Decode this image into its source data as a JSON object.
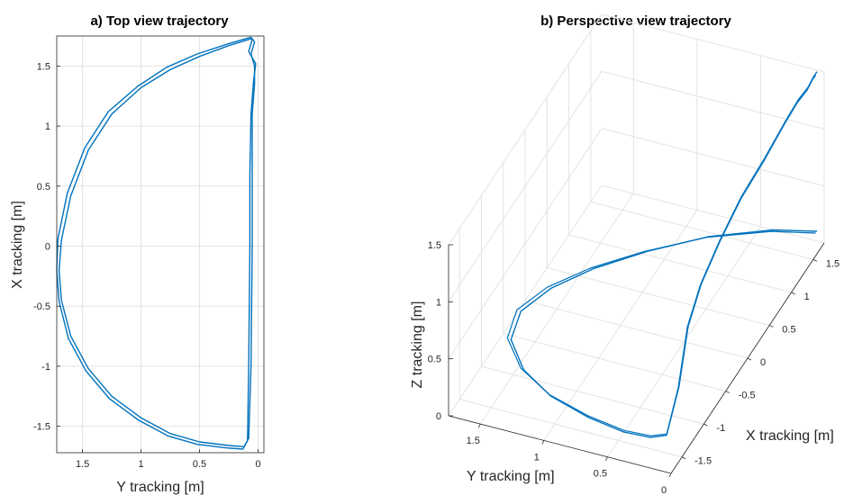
{
  "chart_data": [
    {
      "type": "line",
      "title": "a) Top view trajectory",
      "xlabel": "Y tracking [m]",
      "ylabel": "X tracking [m]",
      "x_ticks": [
        "1.5",
        "1",
        "0.5",
        "0"
      ],
      "y_ticks": [
        "1.5",
        "1",
        "0.5",
        "0",
        "-0.5",
        "-1",
        "-1.5"
      ],
      "xlim": [
        1.72,
        -0.05
      ],
      "ylim": [
        -1.72,
        1.75
      ],
      "x_reversed": true,
      "grid": true,
      "color": "#0072BD",
      "series": [
        {
          "x": [
            0.05,
            0.25,
            0.5,
            0.75,
            1.0,
            1.25,
            1.45,
            1.6,
            1.68,
            1.7,
            1.68,
            1.6,
            1.45,
            1.25,
            1.0,
            0.75,
            0.5,
            0.25,
            0.12,
            0.08,
            0.06,
            0.05,
            0.05,
            0.05,
            0.03,
            0.03,
            0.06,
            0.03,
            0.05
          ],
          "y": [
            1.73,
            1.67,
            1.58,
            1.47,
            1.32,
            1.1,
            0.8,
            0.42,
            0.05,
            -0.2,
            -0.45,
            -0.75,
            -1.02,
            -1.25,
            -1.43,
            -1.56,
            -1.63,
            -1.66,
            -1.67,
            -1.6,
            -1.0,
            0.0,
            0.6,
            1.1,
            1.35,
            1.5,
            1.6,
            1.7,
            1.73
          ]
        },
        {
          "x": [
            0.06,
            0.27,
            0.52,
            0.78,
            1.03,
            1.28,
            1.48,
            1.63,
            1.71,
            1.72,
            1.7,
            1.62,
            1.47,
            1.27,
            1.02,
            0.77,
            0.52,
            0.27,
            0.13,
            0.09,
            0.08,
            0.07,
            0.07,
            0.06,
            0.04,
            0.02,
            0.08,
            0.05,
            0.06
          ],
          "y": [
            1.74,
            1.68,
            1.6,
            1.49,
            1.33,
            1.12,
            0.82,
            0.44,
            0.06,
            -0.2,
            -0.46,
            -0.77,
            -1.04,
            -1.27,
            -1.45,
            -1.58,
            -1.65,
            -1.68,
            -1.69,
            -1.62,
            -1.0,
            0.0,
            0.6,
            1.1,
            1.36,
            1.52,
            1.62,
            1.72,
            1.74
          ]
        }
      ]
    },
    {
      "type": "line",
      "title": "b) Perspective view trajectory",
      "xlabel": "X tracking [m]",
      "ylabel": "Y tracking [m]",
      "zlabel": "Z tracking [m]",
      "x_ticks": [
        "-1.5",
        "-1",
        "-0.5",
        "0",
        "0.5",
        "1",
        "1.5"
      ],
      "y_ticks": [
        "1.5",
        "1",
        "0.5",
        "0"
      ],
      "z_ticks": [
        "0",
        "0.5",
        "1",
        "1.5"
      ],
      "xlim": [
        -1.75,
        1.75
      ],
      "ylim": [
        0,
        1.75
      ],
      "zlim": [
        0,
        1.5
      ],
      "view": "3d-perspective",
      "grid": true,
      "color": "#0072BD",
      "series": [
        {
          "x": [
            1.73,
            1.6,
            1.3,
            0.9,
            0.5,
            0.1,
            -0.3,
            -0.7,
            -1.05,
            -1.3,
            -1.45,
            -1.52,
            -1.5,
            -1.42,
            -1.35,
            -1.2,
            -0.9,
            -0.5,
            0.0,
            0.5,
            1.0,
            1.3,
            1.5,
            1.65,
            1.73
          ],
          "y": [
            0.05,
            0.35,
            0.75,
            1.1,
            1.38,
            1.58,
            1.68,
            1.62,
            1.4,
            1.1,
            0.75,
            0.45,
            0.25,
            0.15,
            0.08,
            0.06,
            0.06,
            0.05,
            0.05,
            0.04,
            0.05,
            0.05,
            0.04,
            0.05,
            0.05
          ],
          "z": [
            0.1,
            0.1,
            0.1,
            0.1,
            0.1,
            0.1,
            0.1,
            0.1,
            0.1,
            0.1,
            0.1,
            0.1,
            0.1,
            0.1,
            0.5,
            0.95,
            1.15,
            1.3,
            1.4,
            1.45,
            1.48,
            1.5,
            1.5,
            1.5,
            1.5
          ]
        }
      ]
    }
  ]
}
